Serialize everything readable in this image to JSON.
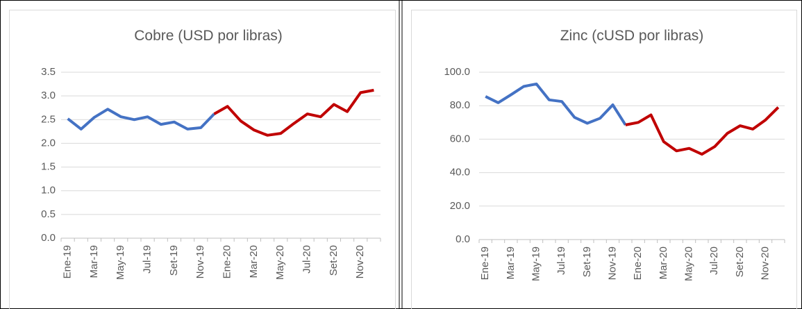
{
  "chart_data": [
    {
      "type": "line",
      "title": "Cobre (USD por libras)",
      "categories": [
        "Ene-19",
        null,
        "Mar-19",
        null,
        "May-19",
        null,
        "Jul-19",
        null,
        "Set-19",
        null,
        "Nov-19",
        null,
        "Ene-20",
        null,
        "Mar-20",
        null,
        "May-20",
        null,
        "Jul-20",
        null,
        "Set-20",
        null,
        "Nov-20",
        null
      ],
      "series": [
        {
          "color": "#4472c4",
          "values": [
            2.52,
            2.3,
            2.55,
            2.72,
            2.56,
            2.5,
            2.56,
            2.4,
            2.45,
            2.3,
            2.33,
            2.62,
            null,
            null,
            null,
            null,
            null,
            null,
            null,
            null,
            null,
            null,
            null,
            null
          ]
        },
        {
          "color": "#c00000",
          "values": [
            null,
            null,
            null,
            null,
            null,
            null,
            null,
            null,
            null,
            null,
            null,
            2.62,
            2.78,
            2.47,
            2.28,
            2.17,
            2.21,
            2.42,
            2.62,
            2.56,
            2.82,
            2.67,
            3.07,
            3.12
          ]
        }
      ],
      "ylim": [
        0,
        3.5
      ],
      "yticks": [
        {
          "value": 0,
          "label": "0.0"
        },
        0.5,
        {
          "value": 1,
          "label": "1.0"
        },
        1.5,
        {
          "value": 2,
          "label": "2.0"
        },
        2.5,
        {
          "value": 3,
          "label": "3.0"
        },
        3.5
      ],
      "grid": true
    },
    {
      "type": "line",
      "title": "Zinc (cUSD por libras)",
      "categories": [
        "Ene-19",
        null,
        "Mar-19",
        null,
        "May-19",
        null,
        "Jul-19",
        null,
        "Set-19",
        null,
        "Nov-19",
        null,
        "Ene-20",
        null,
        "Mar-20",
        null,
        "May-20",
        null,
        "Jul-20",
        null,
        "Set-20",
        null,
        "Nov-20",
        null
      ],
      "series": [
        {
          "color": "#4472c4",
          "values": [
            85.5,
            81.8,
            86.5,
            91.5,
            93,
            83.5,
            82.5,
            73,
            69.5,
            72.5,
            80.5,
            68.5,
            null,
            null,
            null,
            null,
            null,
            null,
            null,
            null,
            null,
            null,
            null,
            null
          ]
        },
        {
          "color": "#c00000",
          "values": [
            null,
            null,
            null,
            null,
            null,
            null,
            null,
            null,
            null,
            null,
            null,
            68.5,
            70,
            74.5,
            58.5,
            53,
            54.5,
            51,
            55.5,
            63.5,
            68,
            66,
            71.5,
            79
          ]
        }
      ],
      "ylim": [
        0,
        100
      ],
      "yticks": [
        {
          "value": 0,
          "label": "0.0"
        },
        {
          "value": 20,
          "label": "20.0"
        },
        {
          "value": 40,
          "label": "40.0"
        },
        {
          "value": 60,
          "label": "60.0"
        },
        {
          "value": 80,
          "label": "80.0"
        },
        {
          "value": 100,
          "label": "100.0"
        }
      ],
      "grid": true
    }
  ]
}
